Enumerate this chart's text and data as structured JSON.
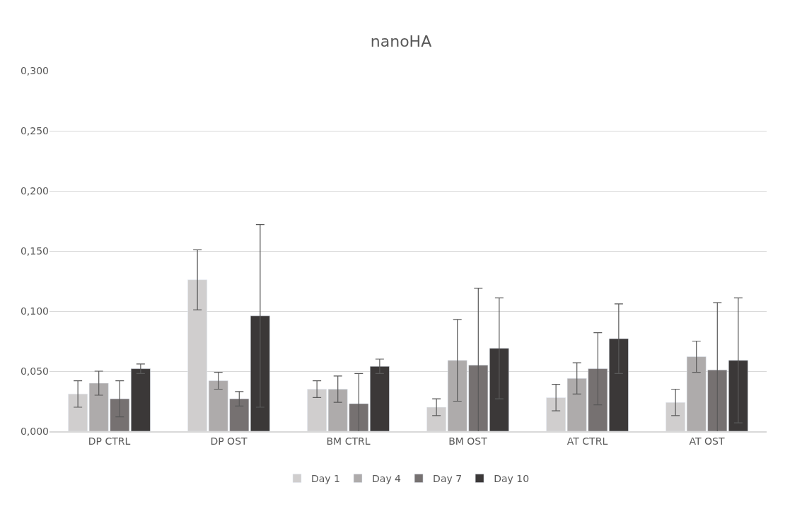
{
  "chart_data": {
    "type": "bar",
    "title": "nanoHA",
    "categories": [
      "DP CTRL",
      "DP OST",
      "BM CTRL",
      "BM OST",
      "AT CTRL",
      "AT OST"
    ],
    "series": [
      {
        "name": "Day 1",
        "color": "#d0cece",
        "values": [
          0.031,
          0.126,
          0.035,
          0.02,
          0.028,
          0.024
        ],
        "errors": [
          0.011,
          0.025,
          0.007,
          0.007,
          0.011,
          0.011
        ]
      },
      {
        "name": "Day 4",
        "color": "#aeabab",
        "values": [
          0.04,
          0.042,
          0.035,
          0.059,
          0.044,
          0.062
        ],
        "errors": [
          0.01,
          0.007,
          0.011,
          0.034,
          0.013,
          0.013
        ]
      },
      {
        "name": "Day 7",
        "color": "#767171",
        "values": [
          0.027,
          0.027,
          0.023,
          0.055,
          0.052,
          0.051
        ],
        "errors": [
          0.015,
          0.006,
          0.025,
          0.064,
          0.03,
          0.056
        ]
      },
      {
        "name": "Day 10",
        "color": "#3b3838",
        "values": [
          0.052,
          0.096,
          0.054,
          0.069,
          0.077,
          0.059
        ],
        "errors": [
          0.004,
          0.076,
          0.006,
          0.042,
          0.029,
          0.052
        ]
      }
    ],
    "ylim": [
      0,
      0.3
    ],
    "yticks": [
      {
        "value": 0,
        "label": "0,000"
      },
      {
        "value": 0.05,
        "label": "0,050"
      },
      {
        "value": 0.1,
        "label": "0,100"
      },
      {
        "value": 0.15,
        "label": "0,150"
      },
      {
        "value": 0.2,
        "label": "0,200"
      },
      {
        "value": 0.25,
        "label": "0,250"
      },
      {
        "value": 0.3,
        "label": "0,300"
      }
    ],
    "grid": "y",
    "legend": "bottom"
  }
}
